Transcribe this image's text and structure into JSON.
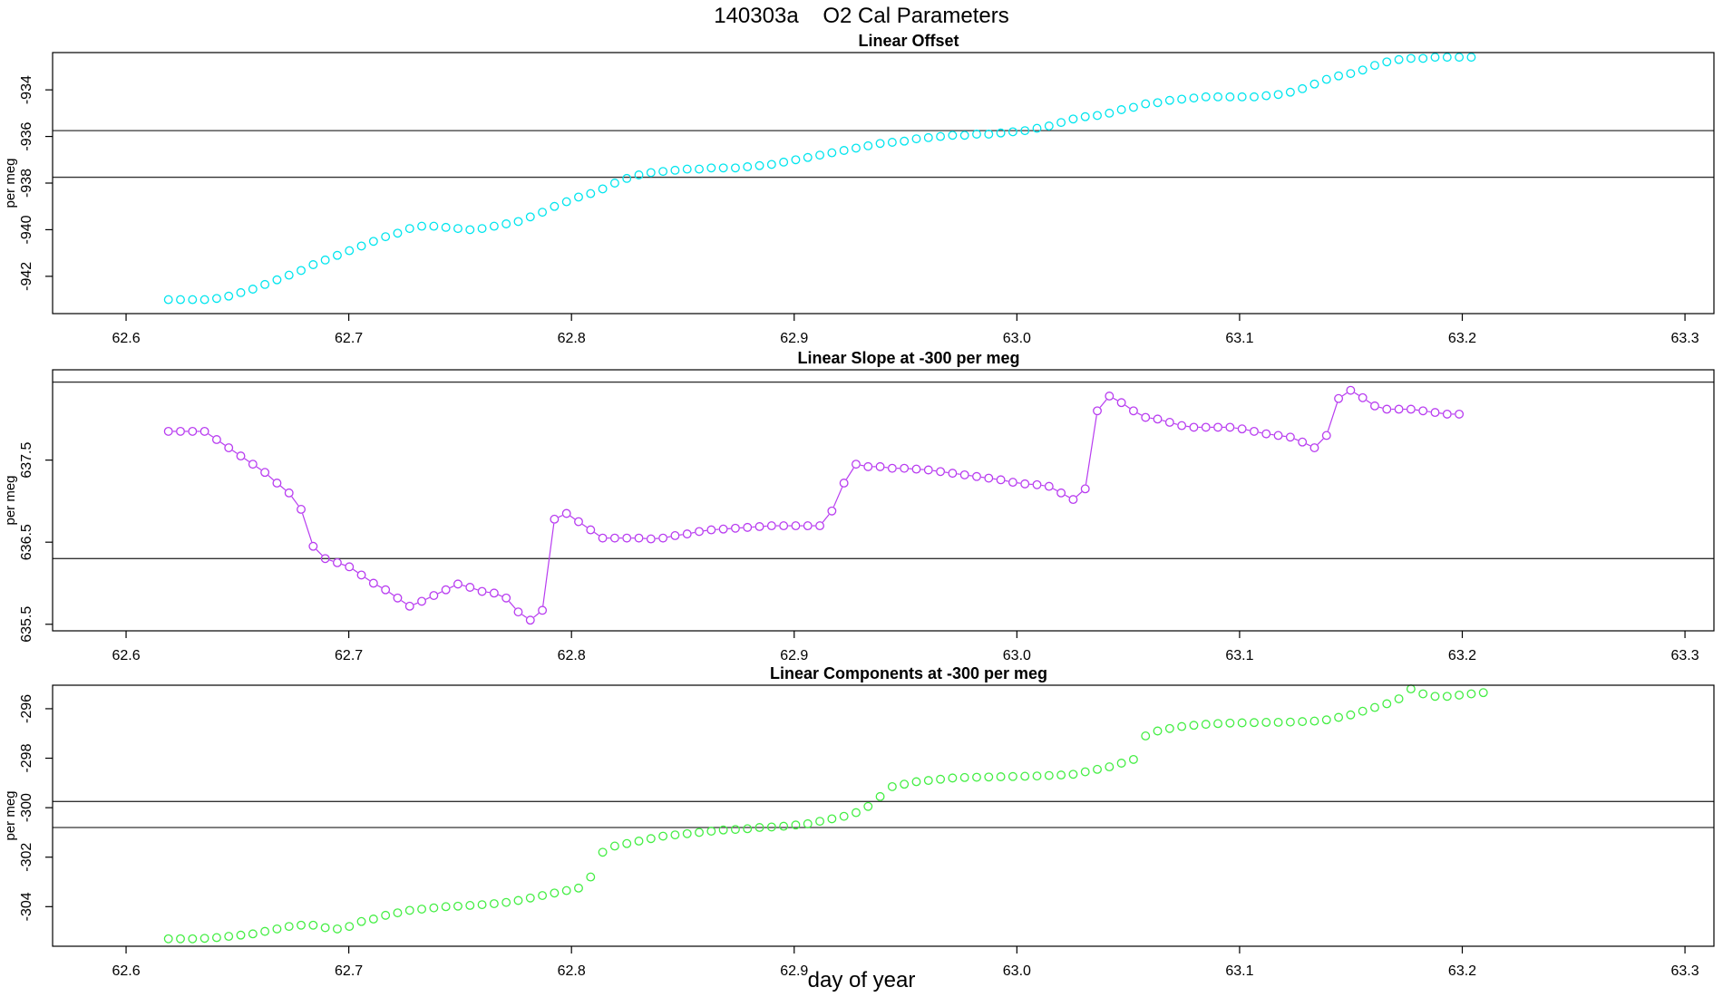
{
  "figure": {
    "title": "140303a    O2 Cal Parameters",
    "xlabel": "day of year"
  },
  "chart_data": [
    {
      "type": "scatter",
      "title": "Linear Offset",
      "ylabel": "per meg",
      "xlabel": "day of year",
      "color": "#00e5ee",
      "connect_points": false,
      "xlim": [
        62.567,
        63.313
      ],
      "ylim": [
        -943.6,
        -932.4
      ],
      "xticks": [
        62.6,
        62.7,
        62.8,
        62.9,
        63.0,
        63.1,
        63.2,
        63.3
      ],
      "xtick_labels": [
        "62.6",
        "62.7",
        "62.8",
        "62.9",
        "63.0",
        "63.1",
        "63.2",
        "63.3"
      ],
      "yticks": [
        -942,
        -940,
        -938,
        -936,
        -934
      ],
      "ytick_labels": [
        "-942",
        "-940",
        "-938",
        "-936",
        "-934"
      ],
      "hlines": [
        -935.75,
        -937.75
      ],
      "x_start": 62.619,
      "x_step": 0.005417,
      "y": [
        -943.0,
        -943.0,
        -943.0,
        -943.0,
        -942.95,
        -942.85,
        -942.7,
        -942.55,
        -942.35,
        -942.15,
        -941.95,
        -941.75,
        -941.5,
        -941.3,
        -941.1,
        -940.9,
        -940.7,
        -940.5,
        -940.3,
        -940.15,
        -939.95,
        -939.85,
        -939.85,
        -939.9,
        -939.95,
        -940.0,
        -939.95,
        -939.85,
        -939.75,
        -939.65,
        -939.45,
        -939.25,
        -939.0,
        -938.8,
        -938.6,
        -938.45,
        -938.25,
        -938.0,
        -937.8,
        -937.65,
        -937.55,
        -937.5,
        -937.45,
        -937.4,
        -937.4,
        -937.35,
        -937.35,
        -937.35,
        -937.3,
        -937.25,
        -937.2,
        -937.1,
        -937.0,
        -936.9,
        -936.8,
        -936.7,
        -936.6,
        -936.5,
        -936.4,
        -936.3,
        -936.25,
        -936.2,
        -936.1,
        -936.05,
        -936.0,
        -935.95,
        -935.95,
        -935.9,
        -935.9,
        -935.85,
        -935.8,
        -935.75,
        -935.65,
        -935.55,
        -935.4,
        -935.25,
        -935.15,
        -935.1,
        -935.0,
        -934.85,
        -934.75,
        -934.6,
        -934.55,
        -934.45,
        -934.4,
        -934.35,
        -934.3,
        -934.3,
        -934.3,
        -934.3,
        -934.3,
        -934.25,
        -934.2,
        -934.1,
        -933.95,
        -933.75,
        -933.55,
        -933.4,
        -933.3,
        -933.15,
        -932.95,
        -932.8,
        -932.7,
        -932.65,
        -932.65,
        -932.6,
        -932.6,
        -932.6,
        -932.6
      ]
    },
    {
      "type": "line",
      "title": "Linear Slope at -300 per meg",
      "ylabel": "per meg",
      "xlabel": "day of year",
      "color": "#b83cf0",
      "connect_points": true,
      "xlim": [
        62.567,
        63.313
      ],
      "ylim": [
        635.42,
        638.6
      ],
      "xticks": [
        62.6,
        62.7,
        62.8,
        62.9,
        63.0,
        63.1,
        63.2,
        63.3
      ],
      "xtick_labels": [
        "62.6",
        "62.7",
        "62.8",
        "62.9",
        "63.0",
        "63.1",
        "63.2",
        "63.3"
      ],
      "yticks": [
        635.5,
        636.5,
        637.5
      ],
      "ytick_labels": [
        "635.5",
        "636.5",
        "637.5"
      ],
      "hlines": [
        638.45,
        636.3
      ],
      "x_start": 62.619,
      "x_step": 0.005417,
      "y": [
        637.85,
        637.85,
        637.85,
        637.85,
        637.75,
        637.65,
        637.55,
        637.45,
        637.35,
        637.22,
        637.1,
        636.9,
        636.45,
        636.3,
        636.25,
        636.2,
        636.1,
        636.0,
        635.92,
        635.82,
        635.72,
        635.78,
        635.85,
        635.92,
        635.99,
        635.95,
        635.9,
        635.88,
        635.82,
        635.65,
        635.55,
        635.67,
        636.78,
        636.85,
        636.75,
        636.65,
        636.55,
        636.55,
        636.55,
        636.55,
        636.54,
        636.55,
        636.58,
        636.6,
        636.63,
        636.65,
        636.66,
        636.67,
        636.68,
        636.69,
        636.7,
        636.7,
        636.7,
        636.7,
        636.7,
        636.88,
        637.22,
        637.45,
        637.42,
        637.42,
        637.4,
        637.4,
        637.39,
        637.38,
        637.36,
        637.34,
        637.32,
        637.3,
        637.28,
        637.26,
        637.23,
        637.21,
        637.2,
        637.18,
        637.1,
        637.02,
        637.15,
        638.1,
        638.28,
        638.2,
        638.1,
        638.02,
        638.0,
        637.96,
        637.92,
        637.9,
        637.9,
        637.9,
        637.9,
        637.88,
        637.85,
        637.82,
        637.8,
        637.78,
        637.72,
        637.65,
        637.8,
        638.25,
        638.35,
        638.26,
        638.16,
        638.12,
        638.12,
        638.12,
        638.1,
        638.08,
        638.06,
        638.06
      ]
    },
    {
      "type": "scatter",
      "title": "Linear Components at -300 per meg",
      "ylabel": "per meg",
      "xlabel": "day of year",
      "color": "#44ee44",
      "connect_points": false,
      "xlim": [
        62.567,
        63.313
      ],
      "ylim": [
        -305.6,
        -295.05
      ],
      "xticks": [
        62.6,
        62.7,
        62.8,
        62.9,
        63.0,
        63.1,
        63.2,
        63.3
      ],
      "xtick_labels": [
        "62.6",
        "62.7",
        "62.8",
        "62.9",
        "63.0",
        "63.1",
        "63.2",
        "63.3"
      ],
      "yticks": [
        -304,
        -302,
        -300,
        -298,
        -296
      ],
      "ytick_labels": [
        "-304",
        "-302",
        "-300",
        "-298",
        "-296"
      ],
      "hlines": [
        -299.75,
        -300.8
      ],
      "x_start": 62.619,
      "x_step": 0.005417,
      "y": [
        -305.3,
        -305.3,
        -305.3,
        -305.28,
        -305.25,
        -305.2,
        -305.15,
        -305.1,
        -305.0,
        -304.9,
        -304.8,
        -304.75,
        -304.75,
        -304.85,
        -304.9,
        -304.8,
        -304.6,
        -304.5,
        -304.35,
        -304.25,
        -304.15,
        -304.1,
        -304.05,
        -304.0,
        -303.98,
        -303.95,
        -303.92,
        -303.88,
        -303.83,
        -303.75,
        -303.65,
        -303.55,
        -303.45,
        -303.35,
        -303.25,
        -302.8,
        -301.8,
        -301.55,
        -301.45,
        -301.35,
        -301.25,
        -301.15,
        -301.1,
        -301.05,
        -301.0,
        -300.95,
        -300.9,
        -300.88,
        -300.85,
        -300.8,
        -300.78,
        -300.75,
        -300.7,
        -300.65,
        -300.55,
        -300.45,
        -300.35,
        -300.2,
        -299.95,
        -299.55,
        -299.15,
        -299.05,
        -298.95,
        -298.9,
        -298.85,
        -298.8,
        -298.78,
        -298.77,
        -298.76,
        -298.75,
        -298.74,
        -298.73,
        -298.72,
        -298.7,
        -298.68,
        -298.65,
        -298.55,
        -298.45,
        -298.35,
        -298.2,
        -298.05,
        -297.1,
        -296.9,
        -296.8,
        -296.72,
        -296.67,
        -296.63,
        -296.6,
        -296.58,
        -296.57,
        -296.56,
        -296.55,
        -296.55,
        -296.54,
        -296.52,
        -296.5,
        -296.45,
        -296.35,
        -296.25,
        -296.1,
        -295.95,
        -295.8,
        -295.6,
        -295.2,
        -295.4,
        -295.5,
        -295.5,
        -295.45,
        -295.4,
        -295.35
      ]
    }
  ]
}
